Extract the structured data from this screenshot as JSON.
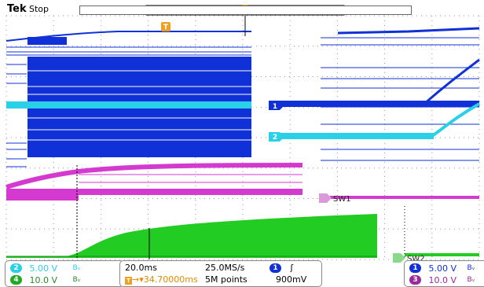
{
  "header": {
    "brand": "Tek",
    "status": "Stop"
  },
  "colors": {
    "ch1": "#1030d8",
    "ch2": "#2ad0e8",
    "ch3": "#d43ad0",
    "ch4": "#22cc22",
    "trigger": "#f0a020",
    "timebase_text": "#e58a00"
  },
  "markers": {
    "ch1": "1",
    "ch2": "2",
    "ch3": "SW1",
    "ch4": "SW2",
    "trigger": "T"
  },
  "channels_left": [
    {
      "num": "2",
      "value": "5.00 V",
      "bw": "Bᵥ",
      "color": "#2ad0e8"
    },
    {
      "num": "4",
      "value": "10.0 V",
      "bw": "Bᵥ",
      "color": "#22cc22"
    }
  ],
  "timebase": {
    "scale": "20.0ms",
    "position": "▾34.70000ms",
    "sample_rate": "25.0MS/s",
    "record_length": "5M points"
  },
  "trigger": {
    "source": "1",
    "slope_icon": "rising-edge-icon",
    "level": "900mV"
  },
  "channels_right": [
    {
      "num": "1",
      "value": "5.00 V",
      "bw": "Bᵥ",
      "color": "#1030d8"
    },
    {
      "num": "3",
      "value": "10.0 V",
      "bw": "Bᵥ",
      "color": "#9a2a9a"
    }
  ]
}
